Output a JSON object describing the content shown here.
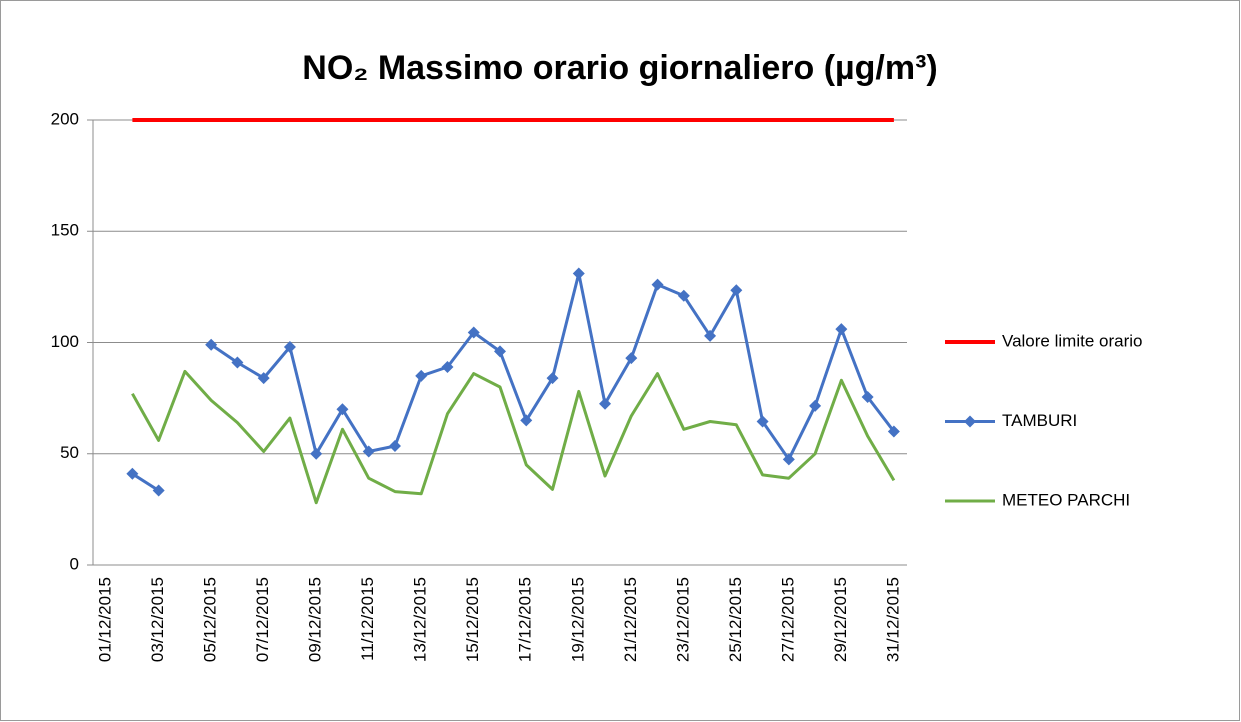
{
  "chart_data": {
    "type": "line",
    "title": "NO₂ Massimo orario giornaliero (µg/m³)",
    "categories": [
      "01/12/2015",
      null,
      "03/12/2015",
      null,
      "05/12/2015",
      null,
      "07/12/2015",
      null,
      "09/12/2015",
      null,
      "11/12/2015",
      null,
      "13/12/2015",
      null,
      "15/12/2015",
      null,
      "17/12/2015",
      null,
      "19/12/2015",
      null,
      "21/12/2015",
      null,
      "23/12/2015",
      null,
      "25/12/2015",
      null,
      "27/12/2015",
      null,
      "29/12/2015",
      null,
      "31/12/2015"
    ],
    "series": [
      {
        "name": "Valore limite orario",
        "color": "#ff0000",
        "markers": false,
        "values": [
          null,
          200,
          200,
          200,
          200,
          200,
          200,
          200,
          200,
          200,
          200,
          200,
          200,
          200,
          200,
          200,
          200,
          200,
          200,
          200,
          200,
          200,
          200,
          200,
          200,
          200,
          200,
          200,
          200,
          200,
          200
        ]
      },
      {
        "name": "TAMBURI",
        "color": "#4472c4",
        "markers": true,
        "values": [
          null,
          41,
          33.5,
          null,
          99,
          91,
          84,
          98,
          50,
          70,
          51,
          53.5,
          85,
          89,
          104.5,
          96,
          65,
          84,
          131,
          72.5,
          93,
          126,
          121,
          103,
          123.5,
          64.5,
          47.5,
          71.5,
          106,
          75.5,
          60
        ]
      },
      {
        "name": "METEO PARCHI",
        "color": "#70ad47",
        "markers": false,
        "values": [
          null,
          77,
          56,
          87,
          74,
          64,
          51,
          66,
          28,
          61,
          39,
          33,
          32,
          68,
          86,
          80,
          45,
          34,
          78,
          40,
          67,
          86,
          61,
          64.5,
          63,
          40.5,
          39,
          50,
          83,
          58,
          38
        ]
      }
    ],
    "ylim": [
      0,
      200
    ],
    "yticks": [
      0,
      50,
      100,
      150,
      200
    ],
    "grid": true,
    "legend": "right"
  }
}
